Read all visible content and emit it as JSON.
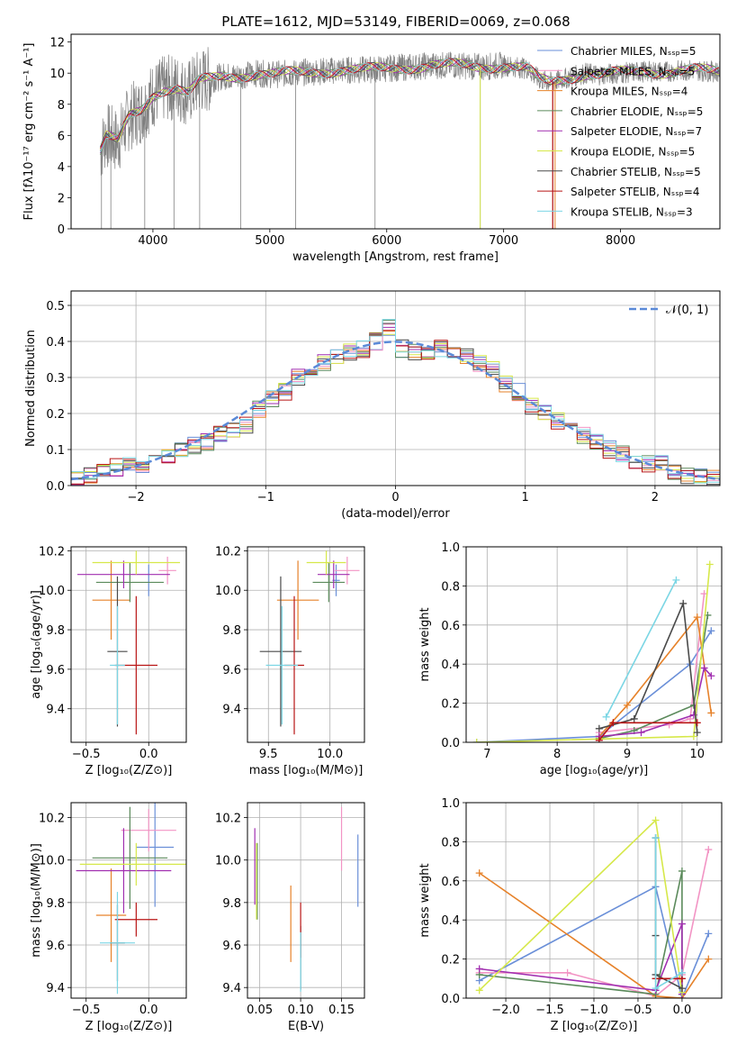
{
  "colors": [
    "#6a8fd8",
    "#f294c4",
    "#e6822a",
    "#5b8a5b",
    "#a12fb0",
    "#d6e84a",
    "#4a4a4a",
    "#b81414",
    "#7bd6e4"
  ],
  "chart_data": [
    {
      "id": "spectrum",
      "type": "line",
      "title": "PLATE=1612, MJD=53149, FIBERID=0069, z=0.068",
      "xlabel": "wavelength [Angstrom, rest frame]",
      "ylabel": "Flux [fλ10⁻¹⁷ erg cm⁻² s⁻¹ A⁻¹]",
      "xlim": [
        3300,
        8850
      ],
      "ylim": [
        0,
        12.5
      ],
      "xticks": [
        4000,
        5000,
        6000,
        7000,
        8000
      ],
      "yticks": [
        0,
        2,
        4,
        6,
        8,
        10,
        12
      ],
      "grid": false,
      "legend_position": "top-right",
      "series": [
        {
          "name": "Chabrier MILES, Nₛₛₚ=5"
        },
        {
          "name": "Salpeter MILES, Nₛₛₚ=5"
        },
        {
          "name": "Kroupa MILES, Nₛₛₚ=4"
        },
        {
          "name": "Chabrier ELODIE, Nₛₛₚ=5"
        },
        {
          "name": "Salpeter ELODIE, Nₛₛₚ=7"
        },
        {
          "name": "Kroupa ELODIE, Nₛₛₚ=5"
        },
        {
          "name": "Chabrier STELIB, Nₛₛₚ=5"
        },
        {
          "name": "Salpeter STELIB, Nₛₛₚ=4"
        },
        {
          "name": "Kroupa STELIB, Nₛₛₚ=3"
        }
      ],
      "continuum": {
        "x": [
          3550,
          3600,
          3700,
          3800,
          3900,
          4000,
          4100,
          4200,
          4300,
          4400,
          4500,
          4600,
          4700,
          4800,
          4900,
          5000,
          5200,
          5400,
          5600,
          5800,
          6000,
          6200,
          6400,
          6600,
          6800,
          7000,
          7200,
          7300,
          7400,
          7500,
          7600,
          7700,
          7800,
          8000,
          8200,
          8400,
          8600,
          8800
        ],
        "y": [
          5.0,
          6.0,
          5.6,
          7.2,
          7.6,
          8.6,
          9.0,
          9.1,
          8.7,
          9.5,
          9.6,
          9.8,
          9.8,
          9.9,
          10.0,
          9.9,
          10.0,
          10.1,
          10.2,
          10.2,
          10.3,
          10.4,
          10.5,
          10.5,
          10.4,
          10.5,
          10.3,
          9.6,
          9.4,
          9.6,
          9.8,
          10.0,
          9.9,
          10.0,
          10.1,
          10.1,
          10.2,
          10.1
        ]
      },
      "data_spikes": [
        3560,
        3640,
        3930,
        4180,
        4400,
        4750,
        5220,
        5900,
        6800,
        7420
      ]
    },
    {
      "id": "residuals",
      "type": "line",
      "xlabel": "(data-model)/error",
      "ylabel": "Normed distribution",
      "xlim": [
        -2.5,
        2.5
      ],
      "ylim": [
        0,
        0.54
      ],
      "xticks": [
        -2,
        -1,
        0,
        1,
        2
      ],
      "xtick_labels": [
        "−2",
        "−1",
        "0",
        "1",
        "2"
      ],
      "yticks": [
        0.0,
        0.1,
        0.2,
        0.3,
        0.4,
        0.5
      ],
      "grid": true,
      "legend_position": "top-right",
      "legend": "𝒩(0, 1)",
      "bin_width": 0.1,
      "bin_centers": [
        -2.45,
        -2.35,
        -2.25,
        -2.15,
        -2.05,
        -1.95,
        -1.85,
        -1.75,
        -1.65,
        -1.55,
        -1.45,
        -1.35,
        -1.25,
        -1.15,
        -1.05,
        -0.95,
        -0.85,
        -0.75,
        -0.65,
        -0.55,
        -0.45,
        -0.35,
        -0.25,
        -0.15,
        -0.05,
        0.05,
        0.15,
        0.25,
        0.35,
        0.45,
        0.55,
        0.65,
        0.75,
        0.85,
        0.95,
        1.05,
        1.15,
        1.25,
        1.35,
        1.45,
        1.55,
        1.65,
        1.75,
        1.85,
        1.95,
        2.05,
        2.15,
        2.25,
        2.35,
        2.45
      ],
      "histogram": [
        0.02,
        0.03,
        0.04,
        0.05,
        0.06,
        0.06,
        0.07,
        0.08,
        0.1,
        0.11,
        0.12,
        0.14,
        0.15,
        0.17,
        0.21,
        0.24,
        0.26,
        0.3,
        0.31,
        0.34,
        0.36,
        0.37,
        0.38,
        0.4,
        0.44,
        0.38,
        0.37,
        0.36,
        0.38,
        0.36,
        0.36,
        0.34,
        0.32,
        0.28,
        0.26,
        0.22,
        0.2,
        0.18,
        0.18,
        0.14,
        0.12,
        0.1,
        0.09,
        0.07,
        0.06,
        0.06,
        0.04,
        0.03,
        0.03,
        0.02
      ],
      "gaussian": {
        "mean": 0,
        "sigma": 1
      }
    },
    {
      "id": "z-age",
      "type": "scatter",
      "xlabel": "Z [log₁₀(Z/Z⊙)]",
      "ylabel": "age  [log₁₀(age/yr)]",
      "xlim": [
        -0.62,
        0.3
      ],
      "ylim": [
        9.23,
        10.22
      ],
      "xticks": [
        -0.5,
        0.0
      ],
      "xtick_labels": [
        "−0.5",
        "0.0"
      ],
      "yticks": [
        9.4,
        9.6,
        9.8,
        10.0,
        10.2
      ],
      "grid": true,
      "points": [
        {
          "x": 0.0,
          "y": 10.05,
          "xerr": 0.0,
          "yerr": 0.08
        },
        {
          "x": 0.15,
          "y": 10.1,
          "xerr": 0.07,
          "yerr": 0.07
        },
        {
          "x": -0.3,
          "y": 9.95,
          "xerr": 0.15,
          "yerr": 0.2
        },
        {
          "x": -0.15,
          "y": 10.04,
          "xerr": 0.27,
          "yerr": 0.1
        },
        {
          "x": -0.2,
          "y": 10.08,
          "xerr": 0.37,
          "yerr": 0.07
        },
        {
          "x": -0.1,
          "y": 10.14,
          "xerr": 0.35,
          "yerr": 0.06
        },
        {
          "x": -0.25,
          "y": 9.69,
          "xerr": 0.08,
          "yerr": 0.38
        },
        {
          "x": -0.1,
          "y": 9.62,
          "xerr": 0.17,
          "yerr": 0.35
        },
        {
          "x": -0.25,
          "y": 9.62,
          "xerr": 0.06,
          "yerr": 0.3
        }
      ]
    },
    {
      "id": "mass-age",
      "type": "scatter",
      "xlabel": "mass [log₁₀(M/M⊙)]",
      "ylabel": "",
      "xlim": [
        9.33,
        10.28
      ],
      "ylim": [
        9.23,
        10.22
      ],
      "xticks": [
        9.5,
        10.0
      ],
      "xtick_labels": [
        "9.5",
        "10.0"
      ],
      "yticks": [
        9.4,
        9.6,
        9.8,
        10.0,
        10.2
      ],
      "grid": true,
      "points": [
        {
          "x": 10.05,
          "y": 10.05,
          "xerr": 0.03,
          "yerr": 0.08
        },
        {
          "x": 10.14,
          "y": 10.1,
          "xerr": 0.1,
          "yerr": 0.07
        },
        {
          "x": 9.74,
          "y": 9.95,
          "xerr": 0.17,
          "yerr": 0.2
        },
        {
          "x": 9.99,
          "y": 10.04,
          "xerr": 0.13,
          "yerr": 0.1
        },
        {
          "x": 10.03,
          "y": 10.08,
          "xerr": 0.13,
          "yerr": 0.07
        },
        {
          "x": 9.97,
          "y": 10.14,
          "xerr": 0.16,
          "yerr": 0.06
        },
        {
          "x": 9.6,
          "y": 9.69,
          "xerr": 0.17,
          "yerr": 0.38
        },
        {
          "x": 9.71,
          "y": 9.62,
          "xerr": 0.08,
          "yerr": 0.35
        },
        {
          "x": 9.61,
          "y": 9.62,
          "xerr": 0.13,
          "yerr": 0.3
        }
      ]
    },
    {
      "id": "age-weight",
      "type": "line",
      "xlabel": "age  [log₁₀(age/yr)]",
      "ylabel": "mass weight",
      "xlim": [
        6.7,
        10.35
      ],
      "ylim": [
        0,
        1
      ],
      "xticks": [
        7,
        8,
        9,
        10
      ],
      "yticks": [
        0.0,
        0.2,
        0.4,
        0.6,
        0.8,
        1.0
      ],
      "grid": true,
      "series": [
        {
          "x": [
            6.85,
            8.6,
            9.9,
            10.2
          ],
          "y": [
            0.0,
            0.03,
            0.4,
            0.57
          ]
        },
        {
          "x": [
            8.6,
            9.6,
            9.9,
            10.1
          ],
          "y": [
            0.05,
            0.09,
            0.12,
            0.76
          ]
        },
        {
          "x": [
            8.6,
            9.0,
            10.0,
            10.2
          ],
          "y": [
            0.03,
            0.19,
            0.64,
            0.15
          ]
        },
        {
          "x": [
            8.6,
            9.1,
            9.95,
            10.15
          ],
          "y": [
            0.02,
            0.06,
            0.19,
            0.65
          ]
        },
        {
          "x": [
            8.6,
            9.2,
            9.95,
            10.1,
            10.2
          ],
          "y": [
            0.03,
            0.05,
            0.14,
            0.38,
            0.34
          ]
        },
        {
          "x": [
            6.85,
            9.95,
            10.18
          ],
          "y": [
            0.0,
            0.03,
            0.91
          ]
        },
        {
          "x": [
            8.6,
            9.1,
            9.8,
            10.0
          ],
          "y": [
            0.07,
            0.12,
            0.71,
            0.05
          ]
        },
        {
          "x": [
            8.6,
            8.8,
            10.0
          ],
          "y": [
            0.01,
            0.1,
            0.1
          ]
        },
        {
          "x": [
            8.7,
            9.7
          ],
          "y": [
            0.13,
            0.83
          ]
        }
      ]
    },
    {
      "id": "z-mass",
      "type": "scatter",
      "xlabel": "Z [log₁₀(Z/Z⊙)]",
      "ylabel": "mass [log₁₀(M/M⊙)]",
      "xlim": [
        -0.62,
        0.3
      ],
      "ylim": [
        9.35,
        10.27
      ],
      "xticks": [
        -0.5,
        0.0
      ],
      "xtick_labels": [
        "−0.5",
        "0.0"
      ],
      "yticks": [
        9.4,
        9.6,
        9.8,
        10.0,
        10.2
      ],
      "grid": true,
      "points": [
        {
          "x": 0.05,
          "y": 10.06,
          "xerr": 0.15,
          "yerr": 0.28
        },
        {
          "x": 0.0,
          "y": 10.14,
          "xerr": 0.22,
          "yerr": 0.1
        },
        {
          "x": -0.3,
          "y": 9.74,
          "xerr": 0.12,
          "yerr": 0.22
        },
        {
          "x": -0.15,
          "y": 10.01,
          "xerr": 0.3,
          "yerr": 0.24
        },
        {
          "x": -0.2,
          "y": 9.95,
          "xerr": 0.38,
          "yerr": 0.2
        },
        {
          "x": -0.1,
          "y": 9.98,
          "xerr": 0.45,
          "yerr": 0.1
        },
        {
          "x": -0.25,
          "y": 9.61,
          "xerr": 0.06,
          "yerr": 0.18
        },
        {
          "x": -0.1,
          "y": 9.72,
          "xerr": 0.17,
          "yerr": 0.08
        },
        {
          "x": -0.25,
          "y": 9.61,
          "xerr": 0.14,
          "yerr": 0.24
        }
      ]
    },
    {
      "id": "ebv-mass",
      "type": "scatter",
      "xlabel": "E(B-V)",
      "ylabel": "",
      "xlim": [
        0.035,
        0.178
      ],
      "ylim": [
        9.35,
        10.27
      ],
      "xticks": [
        0.05,
        0.1,
        0.15
      ],
      "xtick_labels": [
        "0.05",
        "0.10",
        "0.15"
      ],
      "yticks": [
        9.4,
        9.6,
        9.8,
        10.0,
        10.2
      ],
      "grid": true,
      "points": [
        {
          "x": 0.17,
          "y": 9.95,
          "xerr": 0,
          "yerr": 0.17
        },
        {
          "x": 0.15,
          "y": 10.1,
          "xerr": 0,
          "yerr": 0.15
        },
        {
          "x": 0.088,
          "y": 9.7,
          "xerr": 0,
          "yerr": 0.18
        },
        {
          "x": 0.047,
          "y": 9.9,
          "xerr": 0,
          "yerr": 0.18
        },
        {
          "x": 0.044,
          "y": 9.97,
          "xerr": 0,
          "yerr": 0.18
        },
        {
          "x": 0.046,
          "y": 9.9,
          "xerr": 0,
          "yerr": 0.18
        },
        {
          "x": 0.1,
          "y": 9.54,
          "xerr": 0,
          "yerr": 0.15
        },
        {
          "x": 0.1,
          "y": 9.67,
          "xerr": 0,
          "yerr": 0.13
        },
        {
          "x": 0.1,
          "y": 9.52,
          "xerr": 0,
          "yerr": 0.14
        }
      ]
    },
    {
      "id": "z-weight",
      "type": "line",
      "xlabel": "Z [log₁₀(Z/Z⊙)]",
      "ylabel": "mass weight",
      "xlim": [
        -2.45,
        0.45
      ],
      "ylim": [
        0,
        1
      ],
      "xticks": [
        -2.0,
        -1.5,
        -1.0,
        -0.5,
        0.0
      ],
      "xtick_labels": [
        "−2.0",
        "−1.5",
        "−1.0",
        "−0.5",
        "0.0"
      ],
      "yticks": [
        0.0,
        0.2,
        0.4,
        0.6,
        0.8,
        1.0
      ],
      "grid": true,
      "series": [
        {
          "x": [
            -2.3,
            -0.3,
            0.0,
            0.3
          ],
          "y": [
            0.09,
            0.57,
            0.0,
            0.33
          ]
        },
        {
          "x": [
            -2.3,
            -1.3,
            -0.3,
            0.0,
            0.3
          ],
          "y": [
            0.13,
            0.13,
            0.01,
            0.12,
            0.76
          ]
        },
        {
          "x": [
            -2.3,
            -0.3,
            0.0,
            0.3
          ],
          "y": [
            0.64,
            0.01,
            0.0,
            0.2
          ]
        },
        {
          "x": [
            -2.3,
            -0.3,
            0.0,
            0.0
          ],
          "y": [
            0.12,
            0.02,
            0.65,
            0.02
          ]
        },
        {
          "x": [
            -2.3,
            -0.3,
            0.0,
            0.0
          ],
          "y": [
            0.15,
            0.04,
            0.38,
            0.02
          ]
        },
        {
          "x": [
            -2.3,
            -0.3,
            0.0
          ],
          "y": [
            0.04,
            0.91,
            0.03
          ]
        },
        {
          "x": [
            -0.3,
            -0.3,
            -0.3,
            0.0
          ],
          "y": [
            0.82,
            0.32,
            0.12,
            0.05
          ]
        },
        {
          "x": [
            -0.3,
            0.0
          ],
          "y": [
            0.1,
            0.1
          ]
        },
        {
          "x": [
            -0.3,
            -0.3,
            0.0
          ],
          "y": [
            0.82,
            0.05,
            0.13
          ]
        }
      ]
    }
  ]
}
